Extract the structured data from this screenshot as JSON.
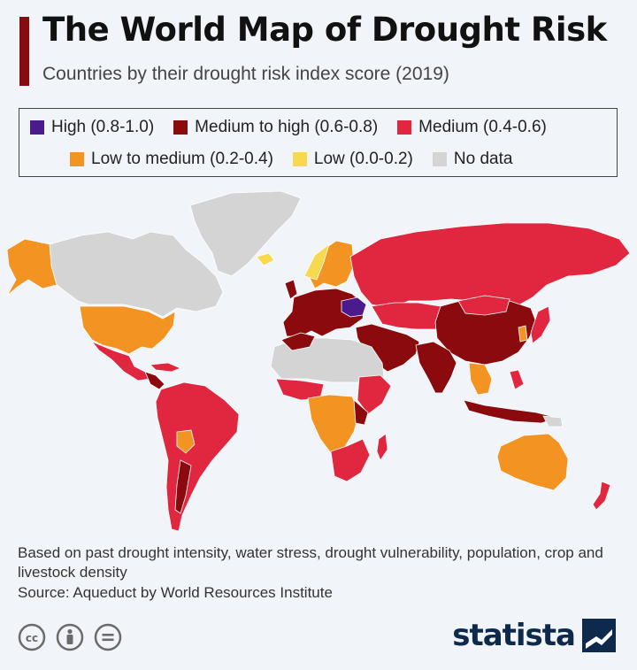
{
  "header": {
    "title": "The World Map of Drought Risk",
    "subtitle": "Countries by their drought risk index score (2019)"
  },
  "legend": {
    "items": [
      {
        "label": "High (0.8-1.0)",
        "color": "#4b1a8c"
      },
      {
        "label": "Medium to high (0.6-0.8)",
        "color": "#8b0a0d"
      },
      {
        "label": "Medium (0.4-0.6)",
        "color": "#e0273f"
      },
      {
        "label": "Low to medium (0.2-0.4)",
        "color": "#f39422"
      },
      {
        "label": "Low (0.0-0.2)",
        "color": "#f6d94e"
      },
      {
        "label": "No data",
        "color": "#d4d4d4"
      }
    ]
  },
  "footer": {
    "note": "Based on past drought intensity, water stress, drought vulnerability, population, crop and livestock density",
    "source": "Source: Aqueduct by World Resources Institute",
    "license_icons": [
      "cc-icon",
      "attribution-icon",
      "no-derivatives-icon"
    ],
    "brand": "statista"
  }
}
